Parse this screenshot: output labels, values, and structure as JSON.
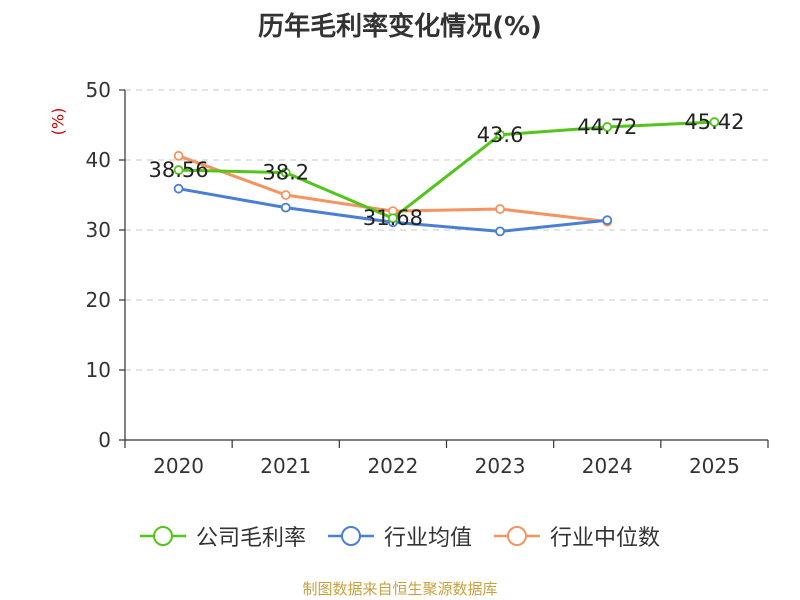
{
  "chart_data": {
    "type": "line",
    "title": "历年毛利率变化情况(%)",
    "ylabel": "(%)",
    "categories": [
      "2020",
      "2021",
      "2022",
      "2023",
      "2024",
      "2025"
    ],
    "yticks": [
      "0",
      "10",
      "20",
      "30",
      "40",
      "50"
    ],
    "ylim": [
      0,
      50
    ],
    "grid": true,
    "legend_position": "bottom",
    "series": [
      {
        "name": "公司毛利率",
        "color": "#52c41a",
        "values": [
          38.56,
          38.2,
          31.68,
          43.6,
          44.72,
          45.42
        ],
        "labels": [
          "38.56",
          "38.2",
          "31.68",
          "43.6",
          "44.72",
          "45.42"
        ]
      },
      {
        "name": "行业均值",
        "color": "#4a7fd8",
        "values": [
          35.9,
          33.2,
          31.1,
          29.8,
          31.4,
          null
        ]
      },
      {
        "name": "行业中位数",
        "color": "#f59461",
        "values": [
          40.6,
          35.0,
          32.7,
          33.0,
          31.2,
          null
        ]
      }
    ]
  },
  "footer": "制图数据来自恒生聚源数据库"
}
